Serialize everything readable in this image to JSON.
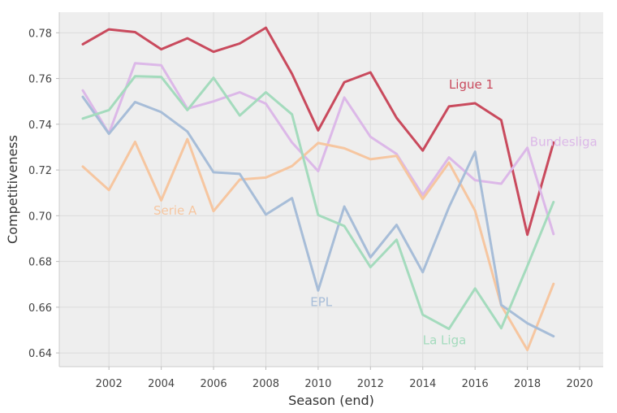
{
  "chart_data": {
    "type": "line",
    "title": "",
    "xlabel": "Season (end)",
    "ylabel": "Competitiveness",
    "xlim": [
      2000.1,
      2020.9
    ],
    "ylim": [
      0.634,
      0.789
    ],
    "xticks": [
      2002,
      2004,
      2006,
      2008,
      2010,
      2012,
      2014,
      2016,
      2018,
      2020
    ],
    "xtick_labels": [
      "2002",
      "2004",
      "2006",
      "2008",
      "2010",
      "2012",
      "2014",
      "2016",
      "2018",
      "2020"
    ],
    "yticks": [
      0.64,
      0.66,
      0.68,
      0.7,
      0.72,
      0.74,
      0.76,
      0.78
    ],
    "ytick_labels": [
      "0.64",
      "0.66",
      "0.68",
      "0.70",
      "0.72",
      "0.74",
      "0.76",
      "0.78"
    ],
    "grid": true,
    "legend": "inline labels",
    "x": [
      2001,
      2002,
      2003,
      2004,
      2005,
      2006,
      2007,
      2008,
      2009,
      2010,
      2011,
      2012,
      2013,
      2014,
      2015,
      2016,
      2017,
      2018,
      2019
    ],
    "series": [
      {
        "name": "Ligue 1",
        "color": "#c94a5d",
        "values": [
          0.775,
          0.7815,
          0.7803,
          0.7728,
          0.7776,
          0.7717,
          0.7753,
          0.7822,
          0.762,
          0.7373,
          0.7584,
          0.7627,
          0.7428,
          0.7285,
          0.7478,
          0.7492,
          0.7418,
          0.6917,
          0.732
        ],
        "label_pos": [
          2015,
          0.7555
        ]
      },
      {
        "name": "Bundesliga",
        "color": "#dcb8e8",
        "values": [
          0.7548,
          0.736,
          0.7667,
          0.7658,
          0.7468,
          0.75,
          0.754,
          0.749,
          0.732,
          0.7195,
          0.7517,
          0.7345,
          0.727,
          0.709,
          0.7255,
          0.7155,
          0.714,
          0.7297,
          0.692
        ],
        "label_pos": [
          2018.1,
          0.7305
        ]
      },
      {
        "name": "Serie A",
        "color": "#f6c6a0",
        "values": [
          0.7215,
          0.7112,
          0.7323,
          0.7067,
          0.7335,
          0.702,
          0.7158,
          0.7167,
          0.7217,
          0.7318,
          0.7295,
          0.7247,
          0.7262,
          0.7073,
          0.7232,
          0.7022,
          0.6608,
          0.6413,
          0.6702
        ],
        "label_pos": [
          2003.7,
          0.7005
        ]
      },
      {
        "name": "EPL",
        "color": "#a7bdd8",
        "values": [
          0.752,
          0.7358,
          0.7497,
          0.7453,
          0.7368,
          0.719,
          0.7183,
          0.7005,
          0.7077,
          0.6673,
          0.704,
          0.6818,
          0.696,
          0.6753,
          0.7037,
          0.728,
          0.661,
          0.653,
          0.6473
        ],
        "label_pos": [
          2009.7,
          0.6605
        ]
      },
      {
        "name": "La Liga",
        "color": "#a4dbbd",
        "values": [
          0.7425,
          0.7462,
          0.761,
          0.7607,
          0.7462,
          0.7603,
          0.7438,
          0.754,
          0.7443,
          0.7003,
          0.6955,
          0.6775,
          0.6895,
          0.6567,
          0.6505,
          0.6682,
          0.6508,
          0.678,
          0.706
        ],
        "label_pos": [
          2014,
          0.6438
        ]
      }
    ]
  }
}
